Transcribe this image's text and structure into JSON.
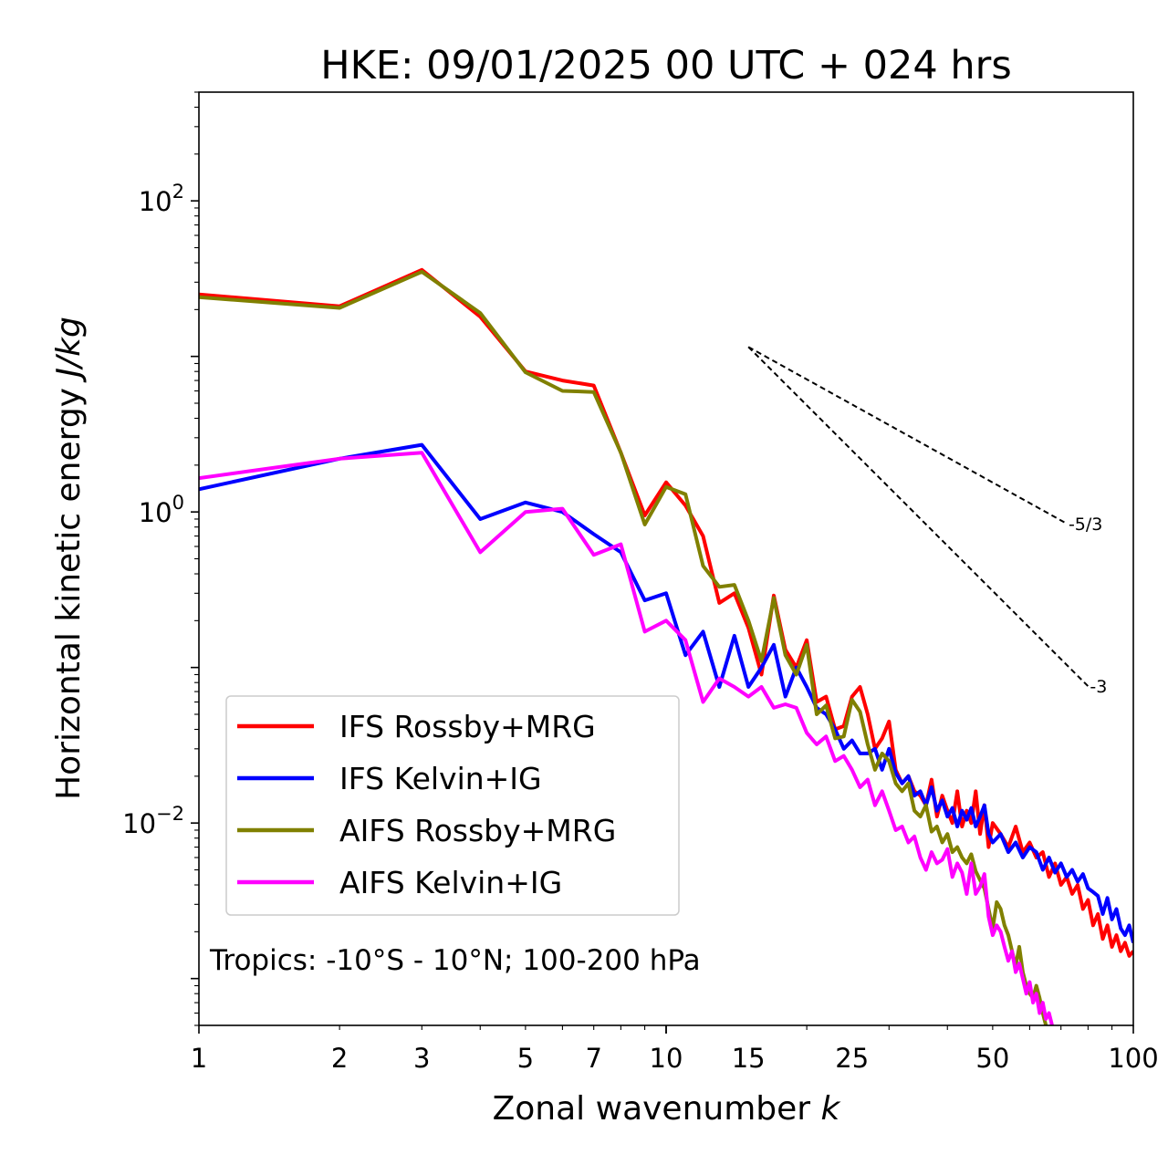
{
  "chart_data": {
    "type": "line",
    "title": "HKE: 09/01/2025 00 UTC + 024 hrs",
    "xlabel": "Zonal wavenumber",
    "xlabel_var": "k",
    "ylabel": "Horizontal kinetic energy",
    "ylabel_unit": "J/kg",
    "xscale": "log",
    "yscale": "log",
    "xlim": [
      1,
      100
    ],
    "ylim": [
      0.0005,
      500
    ],
    "x_ticks": [
      1,
      2,
      3,
      5,
      7,
      10,
      15,
      25,
      50,
      100
    ],
    "x_tick_labels": [
      "1",
      "2",
      "3",
      "5",
      "7",
      "10",
      "15",
      "25",
      "50",
      "100"
    ],
    "y_ticks": [
      0.01,
      1,
      100
    ],
    "y_tick_labels": [
      {
        "base": "10",
        "exp": "−2"
      },
      {
        "base": "10",
        "exp": "0"
      },
      {
        "base": "10",
        "exp": "2"
      }
    ],
    "grid": false,
    "legend_placement": "lower-left",
    "annotation": "Tropics: -10°S - 10°N; 100-200 hPa",
    "reference_lines": [
      {
        "label": "-5/3",
        "slope": -1.6667,
        "x_start": 15,
        "y_start": 11.5,
        "x_end": 72
      },
      {
        "label": "-3",
        "slope": -3,
        "x_start": 15,
        "y_start": 11.5,
        "x_end": 80
      }
    ],
    "series": [
      {
        "name": "IFS Rossby+MRG",
        "color": "#ff0000",
        "points": [
          [
            1,
            25
          ],
          [
            2,
            21
          ],
          [
            3,
            36
          ],
          [
            4,
            18
          ],
          [
            5,
            8
          ],
          [
            6,
            7
          ],
          [
            7,
            6.5
          ],
          [
            8,
            2.4
          ],
          [
            9,
            0.95
          ],
          [
            10,
            1.55
          ],
          [
            11,
            1.1
          ],
          [
            12,
            0.7
          ],
          [
            13,
            0.26
          ],
          [
            14,
            0.3
          ],
          [
            15,
            0.18
          ],
          [
            16,
            0.09
          ],
          [
            17,
            0.29
          ],
          [
            18,
            0.13
          ],
          [
            19,
            0.1
          ],
          [
            20,
            0.15
          ],
          [
            21,
            0.06
          ],
          [
            22,
            0.065
          ],
          [
            23,
            0.04
          ],
          [
            24,
            0.042
          ],
          [
            25,
            0.065
          ],
          [
            26,
            0.075
          ],
          [
            27,
            0.05
          ],
          [
            28,
            0.03
          ],
          [
            29,
            0.035
          ],
          [
            30,
            0.045
          ],
          [
            31,
            0.022
          ],
          [
            32,
            0.018
          ],
          [
            33,
            0.02
          ],
          [
            34,
            0.016
          ],
          [
            35,
            0.015
          ],
          [
            36,
            0.013
          ],
          [
            37,
            0.019
          ],
          [
            38,
            0.011
          ],
          [
            39,
            0.015
          ],
          [
            40,
            0.012
          ],
          [
            41,
            0.01
          ],
          [
            42,
            0.016
          ],
          [
            43,
            0.0095
          ],
          [
            44,
            0.012
          ],
          [
            45,
            0.01
          ],
          [
            46,
            0.016
          ],
          [
            47,
            0.0085
          ],
          [
            48,
            0.013
          ],
          [
            49,
            0.007
          ],
          [
            50,
            0.01
          ],
          [
            52,
            0.0085
          ],
          [
            54,
            0.007
          ],
          [
            56,
            0.0095
          ],
          [
            58,
            0.0065
          ],
          [
            60,
            0.0075
          ],
          [
            62,
            0.006
          ],
          [
            64,
            0.0065
          ],
          [
            66,
            0.0045
          ],
          [
            68,
            0.0055
          ],
          [
            70,
            0.004
          ],
          [
            72,
            0.0045
          ],
          [
            74,
            0.0035
          ],
          [
            76,
            0.004
          ],
          [
            78,
            0.0028
          ],
          [
            80,
            0.0032
          ],
          [
            82,
            0.0022
          ],
          [
            84,
            0.0026
          ],
          [
            86,
            0.0018
          ],
          [
            88,
            0.0022
          ],
          [
            90,
            0.0016
          ],
          [
            92,
            0.0019
          ],
          [
            94,
            0.0015
          ],
          [
            96,
            0.0017
          ],
          [
            98,
            0.0014
          ],
          [
            100,
            0.0015
          ]
        ]
      },
      {
        "name": "IFS Kelvin+IG",
        "color": "#0000ff",
        "points": [
          [
            1,
            1.4
          ],
          [
            2,
            2.2
          ],
          [
            3,
            2.7
          ],
          [
            4,
            0.9
          ],
          [
            5,
            1.15
          ],
          [
            6,
            1.0
          ],
          [
            7,
            0.72
          ],
          [
            8,
            0.55
          ],
          [
            9,
            0.27
          ],
          [
            10,
            0.3
          ],
          [
            11,
            0.12
          ],
          [
            12,
            0.17
          ],
          [
            13,
            0.075
          ],
          [
            14,
            0.16
          ],
          [
            15,
            0.075
          ],
          [
            16,
            0.1
          ],
          [
            17,
            0.14
          ],
          [
            18,
            0.065
          ],
          [
            19,
            0.1
          ],
          [
            20,
            0.075
          ],
          [
            21,
            0.055
          ],
          [
            22,
            0.05
          ],
          [
            23,
            0.04
          ],
          [
            24,
            0.03
          ],
          [
            25,
            0.034
          ],
          [
            26,
            0.028
          ],
          [
            27,
            0.028
          ],
          [
            28,
            0.03
          ],
          [
            29,
            0.022
          ],
          [
            30,
            0.03
          ],
          [
            31,
            0.021
          ],
          [
            32,
            0.018
          ],
          [
            33,
            0.02
          ],
          [
            34,
            0.015
          ],
          [
            35,
            0.016
          ],
          [
            36,
            0.013
          ],
          [
            37,
            0.017
          ],
          [
            38,
            0.012
          ],
          [
            39,
            0.014
          ],
          [
            40,
            0.011
          ],
          [
            41,
            0.0125
          ],
          [
            42,
            0.0095
          ],
          [
            43,
            0.012
          ],
          [
            44,
            0.0105
          ],
          [
            45,
            0.0125
          ],
          [
            46,
            0.0095
          ],
          [
            47,
            0.011
          ],
          [
            48,
            0.013
          ],
          [
            49,
            0.0085
          ],
          [
            50,
            0.0075
          ],
          [
            52,
            0.0085
          ],
          [
            54,
            0.0065
          ],
          [
            56,
            0.0075
          ],
          [
            58,
            0.006
          ],
          [
            60,
            0.007
          ],
          [
            62,
            0.0065
          ],
          [
            64,
            0.005
          ],
          [
            66,
            0.006
          ],
          [
            68,
            0.0048
          ],
          [
            70,
            0.0055
          ],
          [
            72,
            0.0045
          ],
          [
            74,
            0.005
          ],
          [
            76,
            0.0042
          ],
          [
            78,
            0.0047
          ],
          [
            80,
            0.0038
          ],
          [
            82,
            0.0036
          ],
          [
            84,
            0.0034
          ],
          [
            86,
            0.0026
          ],
          [
            88,
            0.0033
          ],
          [
            90,
            0.0024
          ],
          [
            92,
            0.0028
          ],
          [
            94,
            0.0021
          ],
          [
            96,
            0.0019
          ],
          [
            98,
            0.0022
          ],
          [
            100,
            0.0017
          ]
        ]
      },
      {
        "name": "AIFS Rossby+MRG",
        "color": "#808000",
        "points": [
          [
            1,
            24
          ],
          [
            2,
            20.5
          ],
          [
            3,
            35
          ],
          [
            4,
            19
          ],
          [
            5,
            7.9
          ],
          [
            6,
            6
          ],
          [
            7,
            5.9
          ],
          [
            8,
            2.4
          ],
          [
            9,
            0.83
          ],
          [
            10,
            1.45
          ],
          [
            11,
            1.3
          ],
          [
            12,
            0.45
          ],
          [
            13,
            0.33
          ],
          [
            14,
            0.34
          ],
          [
            15,
            0.2
          ],
          [
            16,
            0.11
          ],
          [
            17,
            0.28
          ],
          [
            18,
            0.12
          ],
          [
            19,
            0.09
          ],
          [
            20,
            0.14
          ],
          [
            21,
            0.05
          ],
          [
            22,
            0.057
          ],
          [
            23,
            0.035
          ],
          [
            24,
            0.036
          ],
          [
            25,
            0.062
          ],
          [
            26,
            0.052
          ],
          [
            27,
            0.032
          ],
          [
            28,
            0.022
          ],
          [
            29,
            0.028
          ],
          [
            30,
            0.025
          ],
          [
            31,
            0.018
          ],
          [
            32,
            0.016
          ],
          [
            33,
            0.018
          ],
          [
            34,
            0.012
          ],
          [
            35,
            0.011
          ],
          [
            36,
            0.013
          ],
          [
            37,
            0.0088
          ],
          [
            38,
            0.0095
          ],
          [
            39,
            0.0075
          ],
          [
            40,
            0.0085
          ],
          [
            41,
            0.0065
          ],
          [
            42,
            0.007
          ],
          [
            43,
            0.006
          ],
          [
            44,
            0.0055
          ],
          [
            45,
            0.0063
          ],
          [
            46,
            0.0049
          ],
          [
            47,
            0.0043
          ],
          [
            48,
            0.0038
          ],
          [
            49,
            0.0028
          ],
          [
            50,
            0.0021
          ],
          [
            51,
            0.0031
          ],
          [
            52,
            0.0028
          ],
          [
            53,
            0.0022
          ],
          [
            54,
            0.0019
          ],
          [
            55,
            0.0015
          ],
          [
            56,
            0.0012
          ],
          [
            57,
            0.0016
          ],
          [
            58,
            0.0011
          ],
          [
            59,
            0.0009
          ],
          [
            60,
            0.0008
          ],
          [
            61,
            0.00075
          ],
          [
            62,
            0.0009
          ],
          [
            63,
            0.00075
          ],
          [
            64,
            0.0006
          ],
          [
            65,
            0.0005
          ]
        ]
      },
      {
        "name": "AIFS Kelvin+IG",
        "color": "#ff00ff",
        "points": [
          [
            1,
            1.65
          ],
          [
            2,
            2.2
          ],
          [
            3,
            2.4
          ],
          [
            4,
            0.55
          ],
          [
            5,
            1.0
          ],
          [
            6,
            1.05
          ],
          [
            7,
            0.53
          ],
          [
            8,
            0.62
          ],
          [
            9,
            0.17
          ],
          [
            10,
            0.2
          ],
          [
            11,
            0.15
          ],
          [
            12,
            0.06
          ],
          [
            13,
            0.085
          ],
          [
            14,
            0.075
          ],
          [
            15,
            0.065
          ],
          [
            16,
            0.075
          ],
          [
            17,
            0.055
          ],
          [
            18,
            0.058
          ],
          [
            19,
            0.055
          ],
          [
            20,
            0.038
          ],
          [
            21,
            0.032
          ],
          [
            22,
            0.036
          ],
          [
            23,
            0.025
          ],
          [
            24,
            0.027
          ],
          [
            25,
            0.022
          ],
          [
            26,
            0.017
          ],
          [
            27,
            0.019
          ],
          [
            28,
            0.013
          ],
          [
            29,
            0.016
          ],
          [
            30,
            0.012
          ],
          [
            31,
            0.009
          ],
          [
            32,
            0.0095
          ],
          [
            33,
            0.0075
          ],
          [
            34,
            0.0082
          ],
          [
            35,
            0.006
          ],
          [
            36,
            0.005
          ],
          [
            37,
            0.0065
          ],
          [
            38,
            0.0055
          ],
          [
            39,
            0.0058
          ],
          [
            40,
            0.0068
          ],
          [
            41,
            0.0045
          ],
          [
            42,
            0.0055
          ],
          [
            43,
            0.0048
          ],
          [
            44,
            0.0035
          ],
          [
            45,
            0.0055
          ],
          [
            46,
            0.0035
          ],
          [
            47,
            0.0039
          ],
          [
            48,
            0.0047
          ],
          [
            49,
            0.0025
          ],
          [
            50,
            0.0019
          ],
          [
            51,
            0.0022
          ],
          [
            52,
            0.002
          ],
          [
            53,
            0.0016
          ],
          [
            54,
            0.0013
          ],
          [
            55,
            0.0015
          ],
          [
            56,
            0.0011
          ],
          [
            57,
            0.00125
          ],
          [
            58,
            0.001
          ],
          [
            59,
            0.0008
          ],
          [
            60,
            0.00095
          ],
          [
            61,
            0.0007
          ],
          [
            62,
            0.0008
          ],
          [
            63,
            0.0006
          ],
          [
            64,
            0.0007
          ],
          [
            65,
            0.00055
          ],
          [
            66,
            0.0006
          ],
          [
            67,
            0.0005
          ]
        ]
      }
    ]
  }
}
